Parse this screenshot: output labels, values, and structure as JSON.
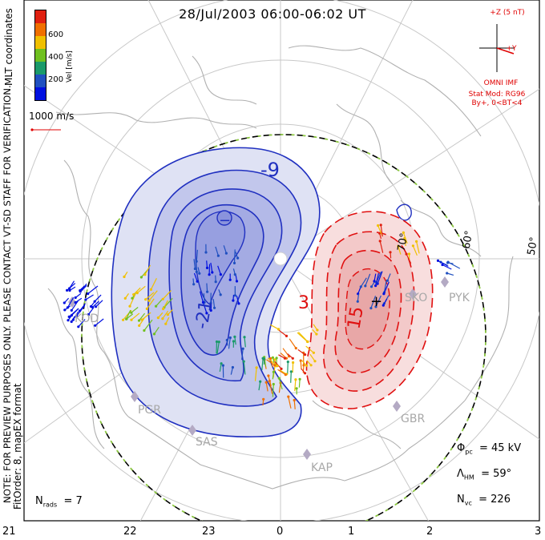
{
  "title": "28/Jul/2003 06:00-06:02 UT",
  "coords_label": "MLT coordinates",
  "preview_note": "NOTE: FOR PREVIEW PURPOSES ONLY. PLEASE CONTACT VT-SD STAFF FOR VERIFICATION.",
  "fit_note": "FitOrder: 8, mapEX format",
  "velocity_legend": {
    "title": "Vel [m/s]",
    "ticks": [
      "600",
      "400",
      "200"
    ],
    "colors": [
      "#e02010",
      "#f07000",
      "#f0c000",
      "#70c020",
      "#1a9a6a",
      "#2050c0",
      "#0010e0"
    ]
  },
  "scale_vector": "1000 m/s",
  "imf": {
    "z_label": "+Z (5 nT)",
    "y_label": "+Y",
    "source": "OMNI IMF",
    "model": "Stat Mod: RG96",
    "model_params": "By+, 0<BT<4",
    "color": "#e00000"
  },
  "stats": {
    "phi_symbol": "Φ",
    "phi_sub": "pc",
    "phi_value": "= 45 kV",
    "lambda_symbol": "Λ",
    "lambda_sub": "HM",
    "lambda_value": "= 59°",
    "nvc_symbol": "N",
    "nvc_sub": "vc",
    "nvc_value": "= 226",
    "nrads_symbol": "N",
    "nrads_sub": "rads",
    "nrads_value": "= 7"
  },
  "mlt_axis": [
    "21",
    "22",
    "23",
    "0",
    "1",
    "2",
    "3"
  ],
  "latitude_labels": [
    "70°",
    "60°",
    "50°"
  ],
  "stations": [
    "KOD",
    "PGR",
    "SAS",
    "KAP",
    "GBR",
    "SKO",
    "PYK"
  ],
  "contour_labels": {
    "neg_small": "-9",
    "neg_mid": "-21",
    "neg_min": "−",
    "pos_small": "3",
    "pos_mid": "15",
    "pos_center": "+"
  },
  "colors": {
    "negative_cell": "#2030c0",
    "positive_cell": "#e01010",
    "hm_boundary": "#90d040"
  }
}
